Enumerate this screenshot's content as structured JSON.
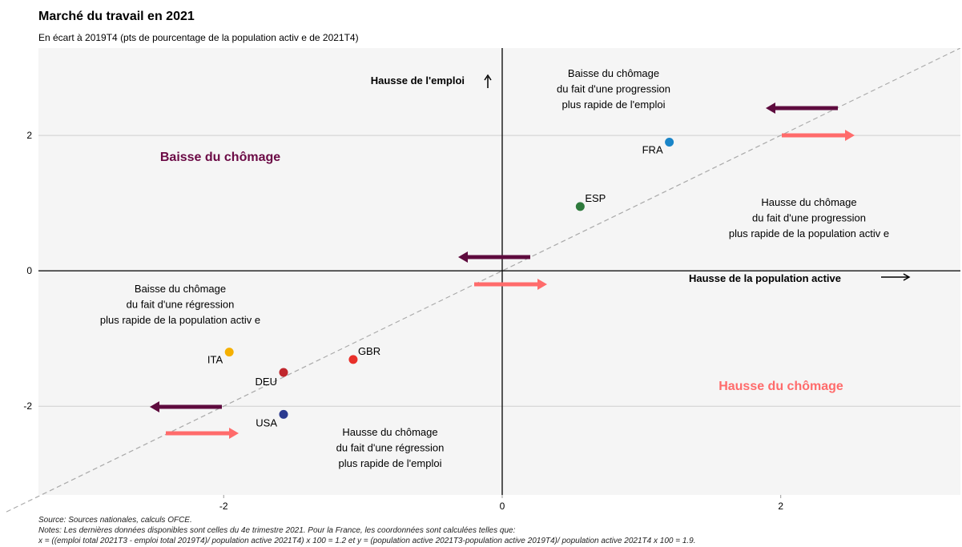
{
  "chart_data": {
    "type": "scatter",
    "title": "Marché du travail en 2021",
    "subtitle": "En écart à 2019T4 (pts de pourcentage de la population activ e de 2021T4)",
    "xlim": [
      -3.33,
      3.29
    ],
    "ylim": [
      -3.31,
      3.29
    ],
    "xticks": [
      -2,
      0,
      2
    ],
    "yticks": [
      -2,
      0,
      2
    ],
    "grid": true,
    "series": [
      {
        "name": "FRA",
        "color": "#1a85c8",
        "x": [
          1.2
        ],
        "values": [
          1.9
        ]
      },
      {
        "name": "ESP",
        "color": "#2e7a3c",
        "x": [
          0.56
        ],
        "values": [
          0.95
        ]
      },
      {
        "name": "ITA",
        "color": "#f5b000",
        "x": [
          -1.96
        ],
        "values": [
          -1.2
        ]
      },
      {
        "name": "DEU",
        "color": "#c0272d",
        "x": [
          -1.57
        ],
        "values": [
          -1.5
        ]
      },
      {
        "name": "GBR",
        "color": "#e8302a",
        "x": [
          -1.07
        ],
        "values": [
          -1.31
        ]
      },
      {
        "name": "USA",
        "color": "#2b3a8f",
        "x": [
          -1.57
        ],
        "values": [
          -2.12
        ]
      }
    ],
    "y_axis_label": "Hausse de l'emploi",
    "x_axis_label": "Hausse de la population active",
    "annotations": [
      [
        "Baisse du chômage",
        "du fait d'une progression",
        "plus rapide de l'emploi"
      ],
      [
        "Baisse du chômage"
      ],
      [
        "Hausse du chômage",
        "du fait d'une progression",
        "plus rapide de la population activ e"
      ],
      [
        "Baisse du chômage",
        "du fait d'une régression",
        "plus rapide de la population activ e"
      ],
      [
        "Hausse du chômage"
      ],
      [
        "Hausse du chômage",
        "du fait d'une régression",
        "plus rapide de l'emploi"
      ]
    ],
    "source": "Source: Sources nationales, calculs OFCE.",
    "notes": [
      "Notes: Les dernières données disponibles sont celles du 4e trimestre 2021. Pour la France, les coordonnées sont calculées telles que:",
      "x = ((emploi total 2021T3 - emploi total 2019T4)/ population active 2021T4) x 100 = 1.2 et y = (population active 2021T3-population active 2019T4)/ population active 2021T4 x 100 = 1.9."
    ]
  }
}
